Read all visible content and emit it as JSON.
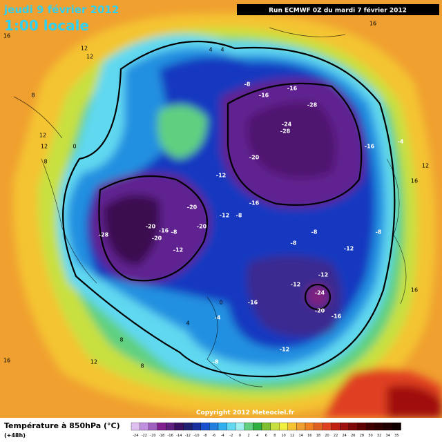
{
  "header": {
    "date": "jeudi 9 février 2012",
    "time": "1:00 locale",
    "run": "Run ECMWF 0Z du mardi 7 février 2012",
    "copyright": "Copyright 2012 Meteociel.fr"
  },
  "legend": {
    "title": "Température à 850hPa (°C)",
    "lead": "(+48h)",
    "scale": [
      -24,
      -22,
      -20,
      -18,
      -16,
      -14,
      -12,
      -10,
      -8,
      -6,
      -4,
      -2,
      0,
      2,
      4,
      6,
      8,
      10,
      12,
      14,
      16,
      18,
      20,
      22,
      24,
      26,
      28,
      30,
      32,
      34,
      35
    ]
  },
  "map_labels": [
    -28,
    -24,
    -28,
    -16,
    -16,
    -8,
    -20,
    -16,
    -12,
    -16,
    -8,
    -12,
    -20,
    -20,
    -28,
    -20,
    -16,
    -20,
    -8,
    -12,
    -8,
    -8,
    -12,
    -8,
    -4,
    -12,
    -12,
    -24,
    -20,
    -16,
    -16,
    -12,
    -8,
    -4,
    16,
    16,
    12,
    12,
    8,
    12,
    12,
    8,
    0,
    4,
    4,
    12,
    16,
    4,
    0,
    8,
    8,
    16,
    12,
    16
  ]
}
